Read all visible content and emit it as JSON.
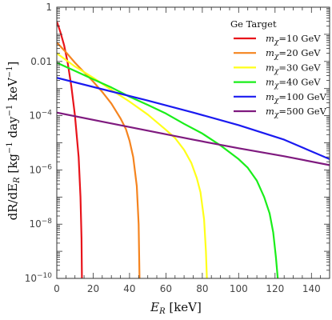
{
  "chart_data": {
    "type": "line",
    "title": "",
    "xlabel": "E_R [keV]",
    "xlabel_main": "E",
    "xlabel_sub": "R",
    "xlabel_rest": " [keV]",
    "ylabel": "dR/dE_R [kg^-1 day^-1 keV^-1]",
    "ylabel_parts": {
      "p1": "dR/dE",
      "sub": "R",
      "p2": " [kg",
      "sup1": "−1",
      "p3": " day",
      "sup2": "−1",
      "p4": " keV",
      "sup3": "−1",
      "p5": "]"
    },
    "x_scale": "linear",
    "y_scale": "log",
    "xlim": [
      0,
      150
    ],
    "ylim": [
      1e-10,
      1
    ],
    "x_ticks": [
      0,
      20,
      40,
      60,
      80,
      100,
      120,
      140
    ],
    "x_tick_labels": [
      "0",
      "20",
      "40",
      "60",
      "80",
      "100",
      "120",
      "140"
    ],
    "y_ticks": [
      1e-10,
      1e-08,
      1e-06,
      0.0001,
      0.01,
      1
    ],
    "y_tick_labels": [
      {
        "base": "10",
        "exp": "−10"
      },
      {
        "base": "10",
        "exp": "−8"
      },
      {
        "base": "10",
        "exp": "−6"
      },
      {
        "base": "10",
        "exp": "−4"
      },
      {
        "base": "0.01",
        "exp": ""
      },
      {
        "base": "1",
        "exp": ""
      }
    ],
    "grid": false,
    "legend_position": "top-right",
    "legend_title": "Ge Target",
    "series": [
      {
        "name": "mχ=10 GeV",
        "mass_label": "10 GeV",
        "color": "#e8141b",
        "x": [
          0,
          2,
          4,
          6,
          8,
          10,
          12,
          13,
          13.6,
          13.8,
          13.8
        ],
        "y": [
          0.3,
          0.12,
          0.04,
          0.009,
          0.0012,
          0.0001,
          3e-06,
          1e-07,
          3e-09,
          1e-10,
          1e-10
        ]
      },
      {
        "name": "mχ=20 GeV",
        "mass_label": "20 GeV",
        "color": "#f5841f",
        "x": [
          0,
          5,
          10,
          15,
          20,
          25,
          30,
          35,
          38,
          40,
          42,
          44,
          45,
          45.5,
          45.5
        ],
        "y": [
          0.05,
          0.022,
          0.009,
          0.004,
          0.0018,
          0.00075,
          0.00028,
          8e-05,
          3.2e-05,
          1.2e-05,
          3e-06,
          2.5e-07,
          1e-08,
          1e-10,
          1e-10
        ]
      },
      {
        "name": "mχ=30 GeV",
        "mass_label": "30 GeV",
        "color": "#ffff1a",
        "x": [
          0,
          10,
          20,
          30,
          40,
          50,
          60,
          65,
          70,
          74,
          77,
          79,
          81,
          82,
          82.5,
          82.5
        ],
        "y": [
          0.02,
          0.0065,
          0.0025,
          0.0009,
          0.00033,
          0.00011,
          3e-05,
          1.5e-05,
          5.5e-06,
          1.8e-06,
          5e-07,
          1.5e-07,
          1.5e-08,
          1e-09,
          1e-10,
          1e-10
        ]
      },
      {
        "name": "mχ=40 GeV",
        "mass_label": "40 GeV",
        "color": "#1aee1a",
        "x": [
          0,
          10,
          20,
          30,
          40,
          50,
          60,
          70,
          80,
          90,
          100,
          105,
          110,
          114,
          117,
          119,
          120.5,
          121.5,
          121.5
        ],
        "y": [
          0.009,
          0.0045,
          0.0022,
          0.0011,
          0.0005,
          0.00025,
          0.00012,
          5e-05,
          2.2e-05,
          8e-06,
          2.5e-06,
          1.2e-06,
          4e-07,
          1e-07,
          2.5e-08,
          5e-09,
          6e-10,
          1e-10,
          1e-10
        ]
      },
      {
        "name": "mχ=100 GeV",
        "mass_label": "100 GeV",
        "color": "#1a1af0",
        "x": [
          0,
          25,
          50,
          75,
          100,
          125,
          150
        ],
        "y": [
          0.0025,
          0.00095,
          0.00036,
          0.00013,
          4.5e-05,
          1.3e-05,
          2.5e-06
        ]
      },
      {
        "name": "mχ=500 GeV",
        "mass_label": "500 GeV",
        "color": "#7f1a7f",
        "x": [
          0,
          25,
          50,
          75,
          100,
          125,
          150
        ],
        "y": [
          0.00013,
          6e-05,
          2.8e-05,
          1.3e-05,
          6.3e-06,
          3.2e-06,
          1.5e-06
        ]
      }
    ]
  }
}
